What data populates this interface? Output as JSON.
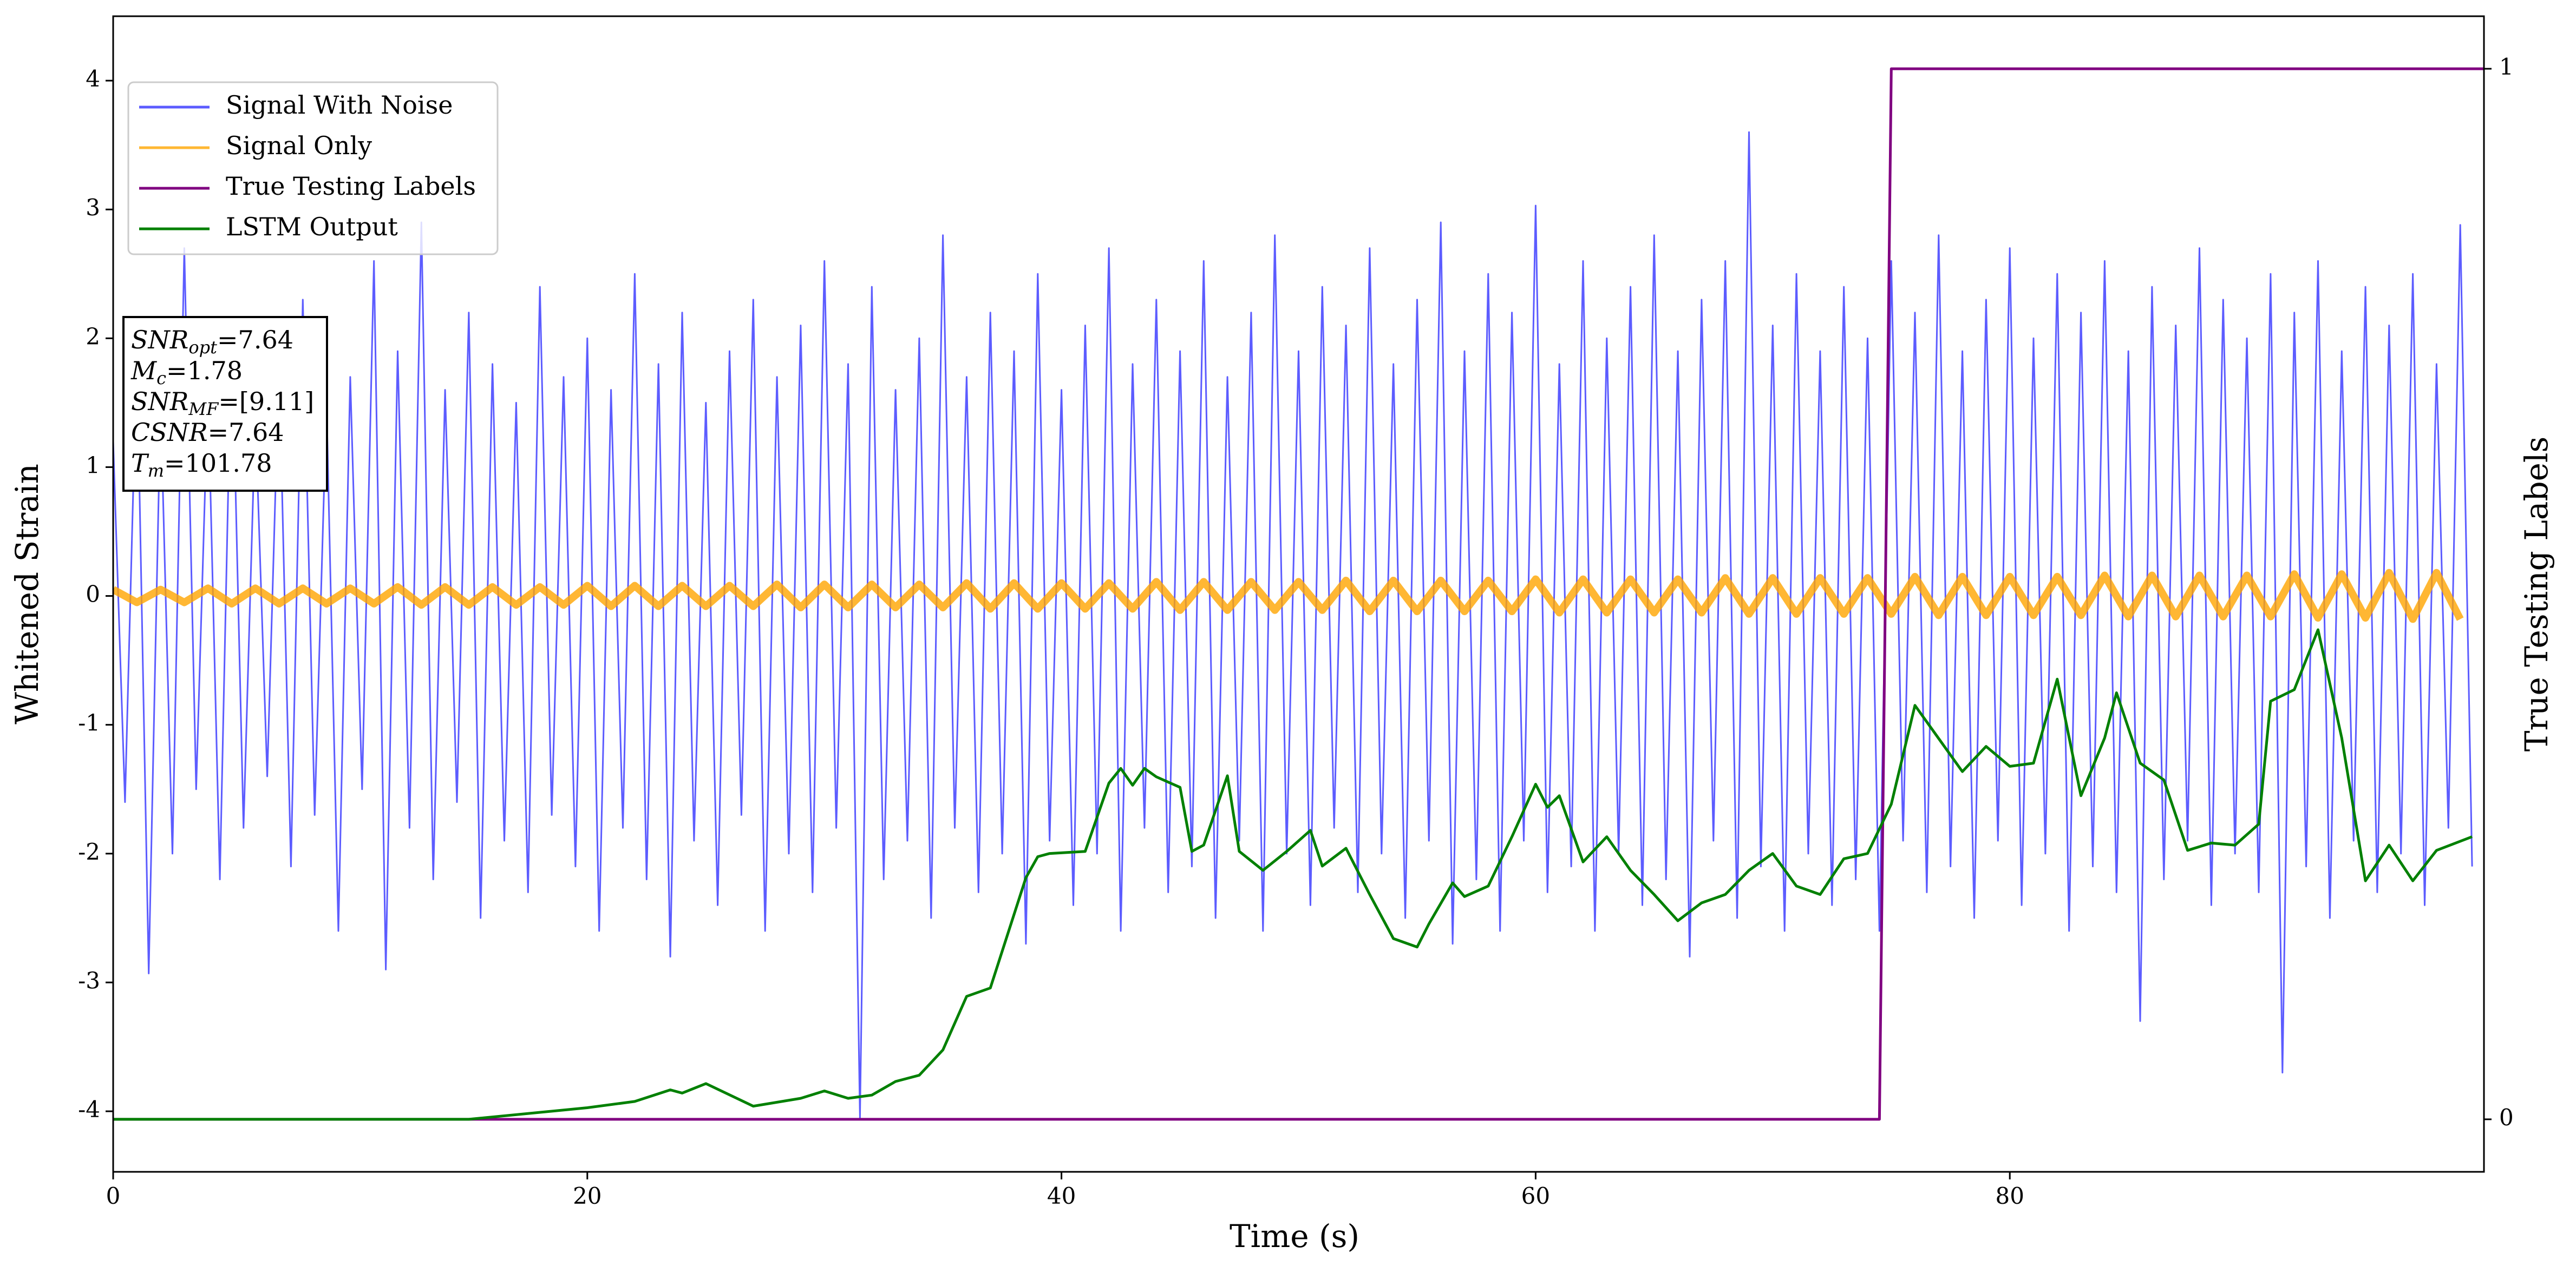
{
  "chart_data": {
    "type": "line",
    "xlabel": "Time (s)",
    "ylabel": "Whitened Strain",
    "y2label": "True Testing Labels",
    "xlim": [
      0,
      100
    ],
    "ylim": [
      -4.47,
      4.5
    ],
    "y2lim": [
      -0.05,
      1.05
    ],
    "xticks": [
      0,
      20,
      40,
      60,
      80
    ],
    "yticks": [
      -4,
      -3,
      -2,
      -1,
      0,
      1,
      2,
      3,
      4
    ],
    "y2ticks": [
      0,
      1
    ],
    "legend": "upper left",
    "grid": false,
    "annotation": [
      {
        "main": "SNR",
        "sub": "opt",
        "value": "=7.64"
      },
      {
        "main": "M",
        "sub": "c",
        "value": "=1.78"
      },
      {
        "main": "SNR",
        "sub": "MF",
        "value": "=[9.11]"
      },
      {
        "main": "CSNR",
        "value": "=7.64"
      },
      {
        "main": "T",
        "sub": "m",
        "value": "=101.78"
      }
    ],
    "series": [
      {
        "name": "Signal With Noise",
        "color": "#3333ff",
        "x": [
          0,
          0.5,
          1,
          1.5,
          2,
          2.5,
          3,
          3.5,
          4,
          4.5,
          5,
          5.5,
          6,
          6.5,
          7,
          7.5,
          8,
          8.5,
          9,
          9.5,
          10,
          10.5,
          11,
          11.5,
          12,
          12.5,
          13,
          13.5,
          14,
          14.5,
          15,
          15.5,
          16,
          16.5,
          17,
          17.5,
          18,
          18.5,
          19,
          19.5,
          20,
          20.5,
          21,
          21.5,
          22,
          22.5,
          23,
          23.5,
          24,
          24.5,
          25,
          25.5,
          26,
          26.5,
          27,
          27.5,
          28,
          28.5,
          29,
          29.5,
          30,
          30.5,
          31,
          31.5,
          32,
          32.5,
          33,
          33.5,
          34,
          34.5,
          35,
          35.5,
          36,
          36.5,
          37,
          37.5,
          38,
          38.5,
          39,
          39.5,
          40,
          40.5,
          41,
          41.5,
          42,
          42.5,
          43,
          43.5,
          44,
          44.5,
          45,
          45.5,
          46,
          46.5,
          47,
          47.5,
          48,
          48.5,
          49,
          49.5,
          50,
          50.5,
          51,
          51.5,
          52,
          52.5,
          53,
          53.5,
          54,
          54.5,
          55,
          55.5,
          56,
          56.5,
          57,
          57.5,
          58,
          58.5,
          59,
          59.5,
          60,
          60.5,
          61,
          61.5,
          62,
          62.5,
          63,
          63.5,
          64,
          64.5,
          65,
          65.5,
          66,
          66.5,
          67,
          67.5,
          68,
          68.5,
          69,
          69.5,
          70,
          70.5,
          71,
          71.5,
          72,
          72.5,
          73,
          73.5,
          74,
          74.5,
          75,
          75.5,
          76,
          76.5,
          77,
          77.5,
          78,
          78.5,
          79,
          79.5,
          80,
          80.5,
          81,
          81.5,
          82,
          82.5,
          83,
          83.5,
          84,
          84.5,
          85,
          85.5,
          86,
          86.5,
          87,
          87.5,
          88,
          88.5,
          89,
          89.5,
          90,
          90.5,
          91,
          91.5,
          92,
          92.5,
          93,
          93.5,
          94,
          94.5,
          95,
          95.5,
          96,
          96.5,
          97,
          97.5,
          98,
          98.5,
          99,
          99.5
        ],
        "values": [
          1.2,
          -1.6,
          1.9,
          -2.93,
          1.5,
          -2.0,
          2.7,
          -1.5,
          1.6,
          -2.2,
          2.1,
          -1.8,
          1.4,
          -1.4,
          1.8,
          -2.1,
          2.3,
          -1.7,
          1.5,
          -2.6,
          1.7,
          -1.5,
          2.6,
          -2.9,
          1.9,
          -1.8,
          2.9,
          -2.2,
          1.6,
          -1.6,
          2.2,
          -2.5,
          1.8,
          -1.9,
          1.5,
          -2.3,
          2.4,
          -1.7,
          1.7,
          -2.1,
          2.0,
          -2.6,
          1.6,
          -1.8,
          2.5,
          -2.2,
          1.8,
          -2.8,
          2.2,
          -1.9,
          1.5,
          -2.4,
          1.9,
          -1.7,
          2.3,
          -2.6,
          1.7,
          -2.0,
          2.1,
          -2.3,
          2.6,
          -1.8,
          1.8,
          -4.05,
          2.4,
          -2.2,
          1.6,
          -1.9,
          2.0,
          -2.5,
          2.8,
          -1.8,
          1.7,
          -2.3,
          2.2,
          -2.0,
          1.9,
          -2.7,
          2.5,
          -1.9,
          1.6,
          -2.4,
          2.1,
          -2.0,
          2.7,
          -2.6,
          1.8,
          -1.8,
          2.3,
          -2.3,
          1.9,
          -2.1,
          2.6,
          -2.5,
          1.7,
          -1.9,
          2.2,
          -2.6,
          2.8,
          -2.0,
          1.9,
          -2.4,
          2.4,
          -1.8,
          2.1,
          -2.3,
          2.7,
          -2.0,
          1.8,
          -2.5,
          2.3,
          -1.9,
          2.9,
          -2.7,
          1.9,
          -2.2,
          2.5,
          -2.6,
          2.2,
          -1.9,
          3.03,
          -2.3,
          1.8,
          -2.1,
          2.6,
          -2.6,
          2.0,
          -2.0,
          2.4,
          -2.4,
          2.8,
          -2.2,
          1.9,
          -2.8,
          2.3,
          -1.9,
          2.6,
          -2.5,
          3.6,
          -2.1,
          2.1,
          -2.6,
          2.5,
          -2.0,
          1.9,
          -2.4,
          2.4,
          -2.2,
          2.0,
          -2.6,
          2.6,
          -1.9,
          2.2,
          -2.3,
          2.8,
          -2.1,
          1.9,
          -2.5,
          2.3,
          -1.9,
          2.7,
          -2.4,
          2.0,
          -2.0,
          2.5,
          -2.6,
          2.2,
          -2.1,
          2.6,
          -2.3,
          1.9,
          -3.3,
          2.4,
          -2.2,
          2.1,
          -1.9,
          2.7,
          -2.4,
          2.3,
          -2.0,
          2.0,
          -2.3,
          2.5,
          -3.7,
          2.2,
          -2.1,
          2.6,
          -2.5,
          1.9,
          -1.9,
          2.4,
          -2.3,
          2.1,
          -2.0,
          2.5,
          -2.4,
          1.8,
          -1.8,
          2.88,
          -2.1
        ]
      },
      {
        "name": "Signal Only",
        "color": "#ffa500",
        "x": [
          0,
          1,
          2,
          3,
          4,
          5,
          6,
          7,
          8,
          9,
          10,
          11,
          12,
          13,
          14,
          15,
          16,
          17,
          18,
          19,
          20,
          21,
          22,
          23,
          24,
          25,
          26,
          27,
          28,
          29,
          30,
          31,
          32,
          33,
          34,
          35,
          36,
          37,
          38,
          39,
          40,
          41,
          42,
          43,
          44,
          45,
          46,
          47,
          48,
          49,
          50,
          51,
          52,
          53,
          54,
          55,
          56,
          57,
          58,
          59,
          60,
          61,
          62,
          63,
          64,
          65,
          66,
          67,
          68,
          69,
          70,
          71,
          72,
          73,
          74,
          75,
          76,
          77,
          78,
          79,
          80,
          81,
          82,
          83,
          84,
          85,
          86,
          87,
          88,
          89,
          90,
          91,
          92,
          93,
          94,
          95,
          96,
          97,
          98,
          99
        ],
        "values": [
          0.05,
          -0.05,
          0.05,
          -0.05,
          0.06,
          -0.06,
          0.06,
          -0.06,
          0.06,
          -0.06,
          0.06,
          -0.06,
          0.07,
          -0.07,
          0.07,
          -0.07,
          0.07,
          -0.07,
          0.07,
          -0.07,
          0.08,
          -0.08,
          0.08,
          -0.08,
          0.08,
          -0.08,
          0.08,
          -0.08,
          0.09,
          -0.09,
          0.09,
          -0.09,
          0.09,
          -0.09,
          0.09,
          -0.09,
          0.1,
          -0.1,
          0.1,
          -0.1,
          0.1,
          -0.1,
          0.1,
          -0.1,
          0.11,
          -0.11,
          0.11,
          -0.11,
          0.11,
          -0.11,
          0.11,
          -0.11,
          0.12,
          -0.12,
          0.12,
          -0.12,
          0.12,
          -0.12,
          0.12,
          -0.12,
          0.13,
          -0.13,
          0.13,
          -0.13,
          0.13,
          -0.13,
          0.13,
          -0.13,
          0.14,
          -0.14,
          0.14,
          -0.14,
          0.14,
          -0.14,
          0.14,
          -0.14,
          0.15,
          -0.15,
          0.15,
          -0.15,
          0.15,
          -0.15,
          0.15,
          -0.15,
          0.16,
          -0.16,
          0.16,
          -0.16,
          0.16,
          -0.16,
          0.16,
          -0.16,
          0.17,
          -0.17,
          0.17,
          -0.17,
          0.18,
          -0.18,
          0.18,
          -0.18
        ]
      },
      {
        "name": "True Testing Labels",
        "color": "#800080",
        "axis": "y2",
        "x": [
          0,
          74.5,
          75,
          100
        ],
        "values": [
          0,
          0,
          1,
          1
        ]
      },
      {
        "name": "LSTM Output",
        "color": "#008000",
        "axis": "y2",
        "x": [
          0,
          15,
          20,
          22,
          23.5,
          24,
          25,
          27,
          29,
          30,
          31,
          32,
          33,
          34,
          35,
          36,
          37,
          37.5,
          38.5,
          39,
          39.5,
          41,
          42,
          42.5,
          43,
          43.5,
          44,
          45,
          45.5,
          46,
          47,
          47.5,
          48.5,
          49.5,
          50.5,
          51,
          52,
          53,
          54,
          55,
          55.5,
          56.5,
          57,
          58,
          59,
          60,
          60.5,
          61,
          62,
          63,
          64,
          65,
          66,
          67,
          68,
          69,
          70,
          71,
          72,
          73,
          74,
          75,
          76,
          77,
          78,
          79,
          80,
          81,
          82,
          83,
          84,
          84.5,
          85.5,
          86.5,
          87.5,
          88.5,
          89.5,
          90.5,
          91,
          92,
          93,
          94,
          95,
          96,
          97,
          98,
          99.5
        ],
        "values": [
          0,
          0,
          0.011,
          0.017,
          0.028,
          0.025,
          0.034,
          0.0125,
          0.02,
          0.027,
          0.02,
          0.023,
          0.036,
          0.042,
          0.066,
          0.117,
          0.125,
          0.16,
          0.23,
          0.25,
          0.253,
          0.255,
          0.32,
          0.334,
          0.318,
          0.334,
          0.326,
          0.316,
          0.255,
          0.261,
          0.327,
          0.255,
          0.237,
          0.255,
          0.275,
          0.241,
          0.258,
          0.214,
          0.172,
          0.164,
          0.186,
          0.225,
          0.212,
          0.222,
          0.269,
          0.319,
          0.297,
          0.308,
          0.245,
          0.269,
          0.237,
          0.214,
          0.189,
          0.206,
          0.214,
          0.237,
          0.253,
          0.222,
          0.214,
          0.248,
          0.253,
          0.3,
          0.394,
          0.3625,
          0.331,
          0.355,
          0.336,
          0.339,
          0.419,
          0.308,
          0.363,
          0.406,
          0.339,
          0.323,
          0.256,
          0.263,
          0.261,
          0.281,
          0.398,
          0.409,
          0.466,
          0.363,
          0.227,
          0.261,
          0.227,
          0.256,
          0.269
        ]
      }
    ]
  }
}
